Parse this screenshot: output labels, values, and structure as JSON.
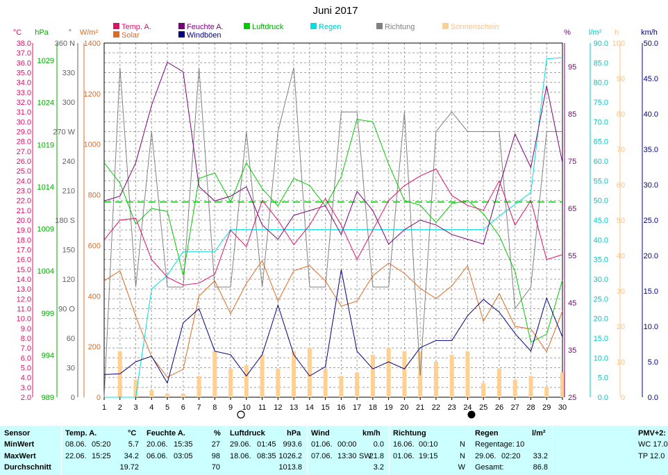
{
  "title": "Juni 2017",
  "legend": [
    {
      "label": "Temp. A.",
      "color": "#e0106a"
    },
    {
      "label": "Solar",
      "color": "#e06a20"
    },
    {
      "label": "Feuchte A.",
      "color": "#7a007a"
    },
    {
      "label": "Windböen",
      "color": "#000080"
    },
    {
      "label": "Luftdruck",
      "color": "#00cc00"
    },
    {
      "label": "Regen",
      "color": "#00e0e0"
    },
    {
      "label": "Richtung",
      "color": "#808080"
    },
    {
      "label": "Sonnenschein",
      "color": "#ffd090"
    }
  ],
  "units": {
    "temp": "°C",
    "pressure": "hPa",
    "direction": "°",
    "solar": "W/m²",
    "humidity": "%",
    "rain": "l/m²",
    "sun": "h",
    "wind": "km/h"
  },
  "axes": {
    "temp": {
      "ticks": [
        "38.0",
        "37.0",
        "36.0",
        "35.0",
        "34.0",
        "33.0",
        "32.0",
        "31.0",
        "30.0",
        "29.0",
        "28.0",
        "27.0",
        "26.0",
        "25.0",
        "24.0",
        "23.0",
        "22.0",
        "21.0",
        "20.0",
        "19.0",
        "18.0",
        "17.0",
        "16.0",
        "15.0",
        "14.0",
        "13.0",
        "12.0",
        "11.0",
        "10.0",
        "9.0",
        "8.0",
        "7.0",
        "6.0",
        "5.0",
        "4.0",
        "3.0",
        "2.0"
      ],
      "min": 2,
      "max": 38
    },
    "pressure": {
      "ticks": [
        "1029",
        "1024",
        "1019",
        "1014",
        "1009",
        "1004",
        "999",
        "994",
        "989"
      ]
    },
    "direction": {
      "ticks": [
        "360 N",
        "330",
        "300",
        "270 W",
        "240",
        "210",
        "180 S",
        "150",
        "120",
        "90 O",
        "60",
        "30",
        "0"
      ]
    },
    "solar": {
      "ticks": [
        "1400",
        "1200",
        "1000",
        "800",
        "600",
        "400",
        "200",
        "0"
      ]
    },
    "humidity": {
      "ticks": [
        "95",
        "85",
        "75",
        "65",
        "55",
        "45",
        "35",
        "25"
      ]
    },
    "rain": {
      "ticks": [
        "90.0",
        "85.0",
        "80.0",
        "75.0",
        "70.0",
        "65.0",
        "60.0",
        "55.0",
        "50.0",
        "45.0",
        "40.0",
        "35.0",
        "30.0",
        "25.0",
        "20.0",
        "15.0",
        "10.0",
        "5.0",
        "0.0"
      ]
    },
    "sun": {
      "ticks": [
        "100",
        "90",
        "80",
        "70",
        "60",
        "50",
        "40",
        "30",
        "20",
        "10",
        "0"
      ]
    },
    "wind": {
      "ticks": [
        "50.0",
        "45.0",
        "40.0",
        "35.0",
        "30.0",
        "25.0",
        "20.0",
        "15.0",
        "10.0",
        "5.0",
        "0.0"
      ]
    }
  },
  "chart_data": {
    "type": "line",
    "title": "Juni 2017",
    "x": [
      1,
      2,
      3,
      4,
      5,
      6,
      7,
      8,
      9,
      10,
      11,
      12,
      13,
      14,
      15,
      16,
      17,
      18,
      19,
      20,
      21,
      22,
      23,
      24,
      25,
      26,
      27,
      28,
      29,
      30
    ],
    "x_tick_labels": [
      "1",
      "2",
      "3",
      "4",
      "5",
      "6",
      "7",
      "8",
      "9",
      "10",
      "11",
      "12",
      "13",
      "14",
      "15",
      "16",
      "17",
      "18",
      "19",
      "20",
      "21",
      "22",
      "23",
      "24",
      "25",
      "26",
      "27",
      "28",
      "29",
      "30"
    ],
    "pressure_mean": 1013.8,
    "series": [
      {
        "name": "Temp. A.",
        "unit": "°C",
        "color": "#e0106a",
        "values": [
          18.0,
          20.0,
          20.2,
          16.0,
          14.2,
          13.4,
          13.6,
          14.5,
          19.0,
          17.3,
          22.0,
          20.0,
          17.5,
          19.5,
          22.2,
          19.5,
          16.0,
          19.0,
          22.0,
          23.5,
          24.5,
          25.2,
          22.5,
          21.5,
          21.0,
          24.0,
          19.5,
          22.0,
          16.0,
          16.5
        ]
      },
      {
        "name": "Solar",
        "unit": "W/m²",
        "color": "#e06a20",
        "values": [
          460,
          500,
          320,
          160,
          80,
          110,
          400,
          460,
          330,
          450,
          540,
          380,
          500,
          520,
          460,
          360,
          380,
          480,
          530,
          490,
          430,
          390,
          440,
          520,
          300,
          410,
          280,
          270,
          180,
          340
        ]
      },
      {
        "name": "Feuchte A.",
        "unit": "%",
        "color": "#7a007a",
        "values": [
          66,
          67,
          74,
          86,
          95,
          93,
          69,
          66,
          67,
          69,
          61,
          58,
          63,
          64,
          65,
          59,
          68,
          64,
          57,
          60,
          62,
          61,
          59,
          58,
          57,
          69,
          80,
          73,
          90,
          74
        ]
      },
      {
        "name": "Windböen",
        "unit": "km/h",
        "color": "#000080",
        "values": [
          3.2,
          3.3,
          5.0,
          5.8,
          2.0,
          10.5,
          12.5,
          6.5,
          6.0,
          3.0,
          6.0,
          13.0,
          6.0,
          3.0,
          4.3,
          18.0,
          6.5,
          4.0,
          5.0,
          4.0,
          7.0,
          8.0,
          8.0,
          11.5,
          13.8,
          12.0,
          9.0,
          6.5,
          14.0,
          8.5
        ]
      },
      {
        "name": "Luftdruck",
        "unit": "hPa",
        "color": "#00cc00",
        "values": [
          1018.8,
          1016.2,
          1011.0,
          1013.0,
          1012.6,
          1004.5,
          1016.8,
          1017.5,
          1013.8,
          1018.8,
          1015.5,
          1013.3,
          1016.8,
          1015.9,
          1013.3,
          1017.0,
          1024.3,
          1024.0,
          1018.6,
          1014.0,
          1013.4,
          1011.2,
          1013.6,
          1014.0,
          1012.3,
          1009.5,
          1005.0,
          996.0,
          997.0,
          1003.9
        ]
      },
      {
        "name": "Regen",
        "unit": "l/m²",
        "color": "#00e0e0",
        "values": [
          0,
          0,
          0,
          27.5,
          31.0,
          37.0,
          37.0,
          37.0,
          42.6,
          42.6,
          42.6,
          42.6,
          42.6,
          42.6,
          42.6,
          42.6,
          42.6,
          42.6,
          42.6,
          42.6,
          42.6,
          42.6,
          42.6,
          42.6,
          42.6,
          46.0,
          49.0,
          52.0,
          86.0,
          86.3
        ]
      },
      {
        "name": "Richtung",
        "unit": "°",
        "color": "#808080",
        "values": [
          0,
          335,
          112,
          270,
          112,
          112,
          335,
          112,
          112,
          270,
          112,
          270,
          335,
          112,
          112,
          290,
          290,
          112,
          112,
          290,
          22,
          270,
          290,
          270,
          270,
          270,
          90,
          112,
          270,
          270
        ]
      },
      {
        "name": "Sonnenschein",
        "unit": "h",
        "color": "#ffd090",
        "values": [
          0,
          13,
          5,
          2,
          1,
          1,
          6,
          13,
          8,
          9,
          12,
          8,
          13,
          14,
          8,
          6,
          7,
          12,
          14,
          13,
          13,
          10,
          12,
          13,
          4,
          8,
          5,
          6,
          3,
          7
        ]
      }
    ]
  },
  "stats": {
    "sensor_header": "Sensor",
    "row_labels": [
      "MinWert",
      "MaxWert",
      "Durchschnitt"
    ],
    "temp": {
      "title": "Temp. A.",
      "unit": "°C",
      "min_date": "08.06.",
      "min_time": "05:20",
      "min_val": "5.7",
      "max_date": "22.06.",
      "max_time": "15:25",
      "max_val": "34.2",
      "avg": "19.72"
    },
    "humidity": {
      "title": "Feuchte A.",
      "unit": "%",
      "min_date": "20.06.",
      "min_time": "15:35",
      "min_val": "27",
      "max_date": "06.06.",
      "max_time": "03:05",
      "max_val": "98",
      "avg": "70"
    },
    "pressure": {
      "title": "Luftdruck",
      "unit": "hPa",
      "min_date": "29.06.",
      "min_time": "01:45",
      "min_val": "993.6",
      "max_date": "18.06.",
      "max_time": "08:35",
      "max_val": "1026.2",
      "avg": "1013.8"
    },
    "wind": {
      "title": "Wind",
      "unit": "km/h",
      "min_date": "01.06.",
      "min_time": "00:00",
      "min_val": "0.0",
      "max_date": "07.06.",
      "max_time": "13:30",
      "max_dir": "SW",
      "max_val": "21.8",
      "avg": "3.2"
    },
    "direction": {
      "title": "Richtung",
      "min_date": "16.06.",
      "min_time": "00:10",
      "min_val": "N",
      "max_date": "01.06.",
      "max_time": "19:15",
      "max_val": "N",
      "avg": "W"
    },
    "rain": {
      "title": "Regen",
      "unit": "l/m²",
      "days_label": "Regentage:",
      "days": "10",
      "max_date": "29.06.",
      "max_time": "02:20",
      "max_val": "33.2",
      "total_label": "Gesamt:",
      "total": "86.8"
    },
    "pmv": {
      "title": "PMV+2:",
      "wc": "WC 17.0",
      "tp": "TP 12.0"
    }
  }
}
